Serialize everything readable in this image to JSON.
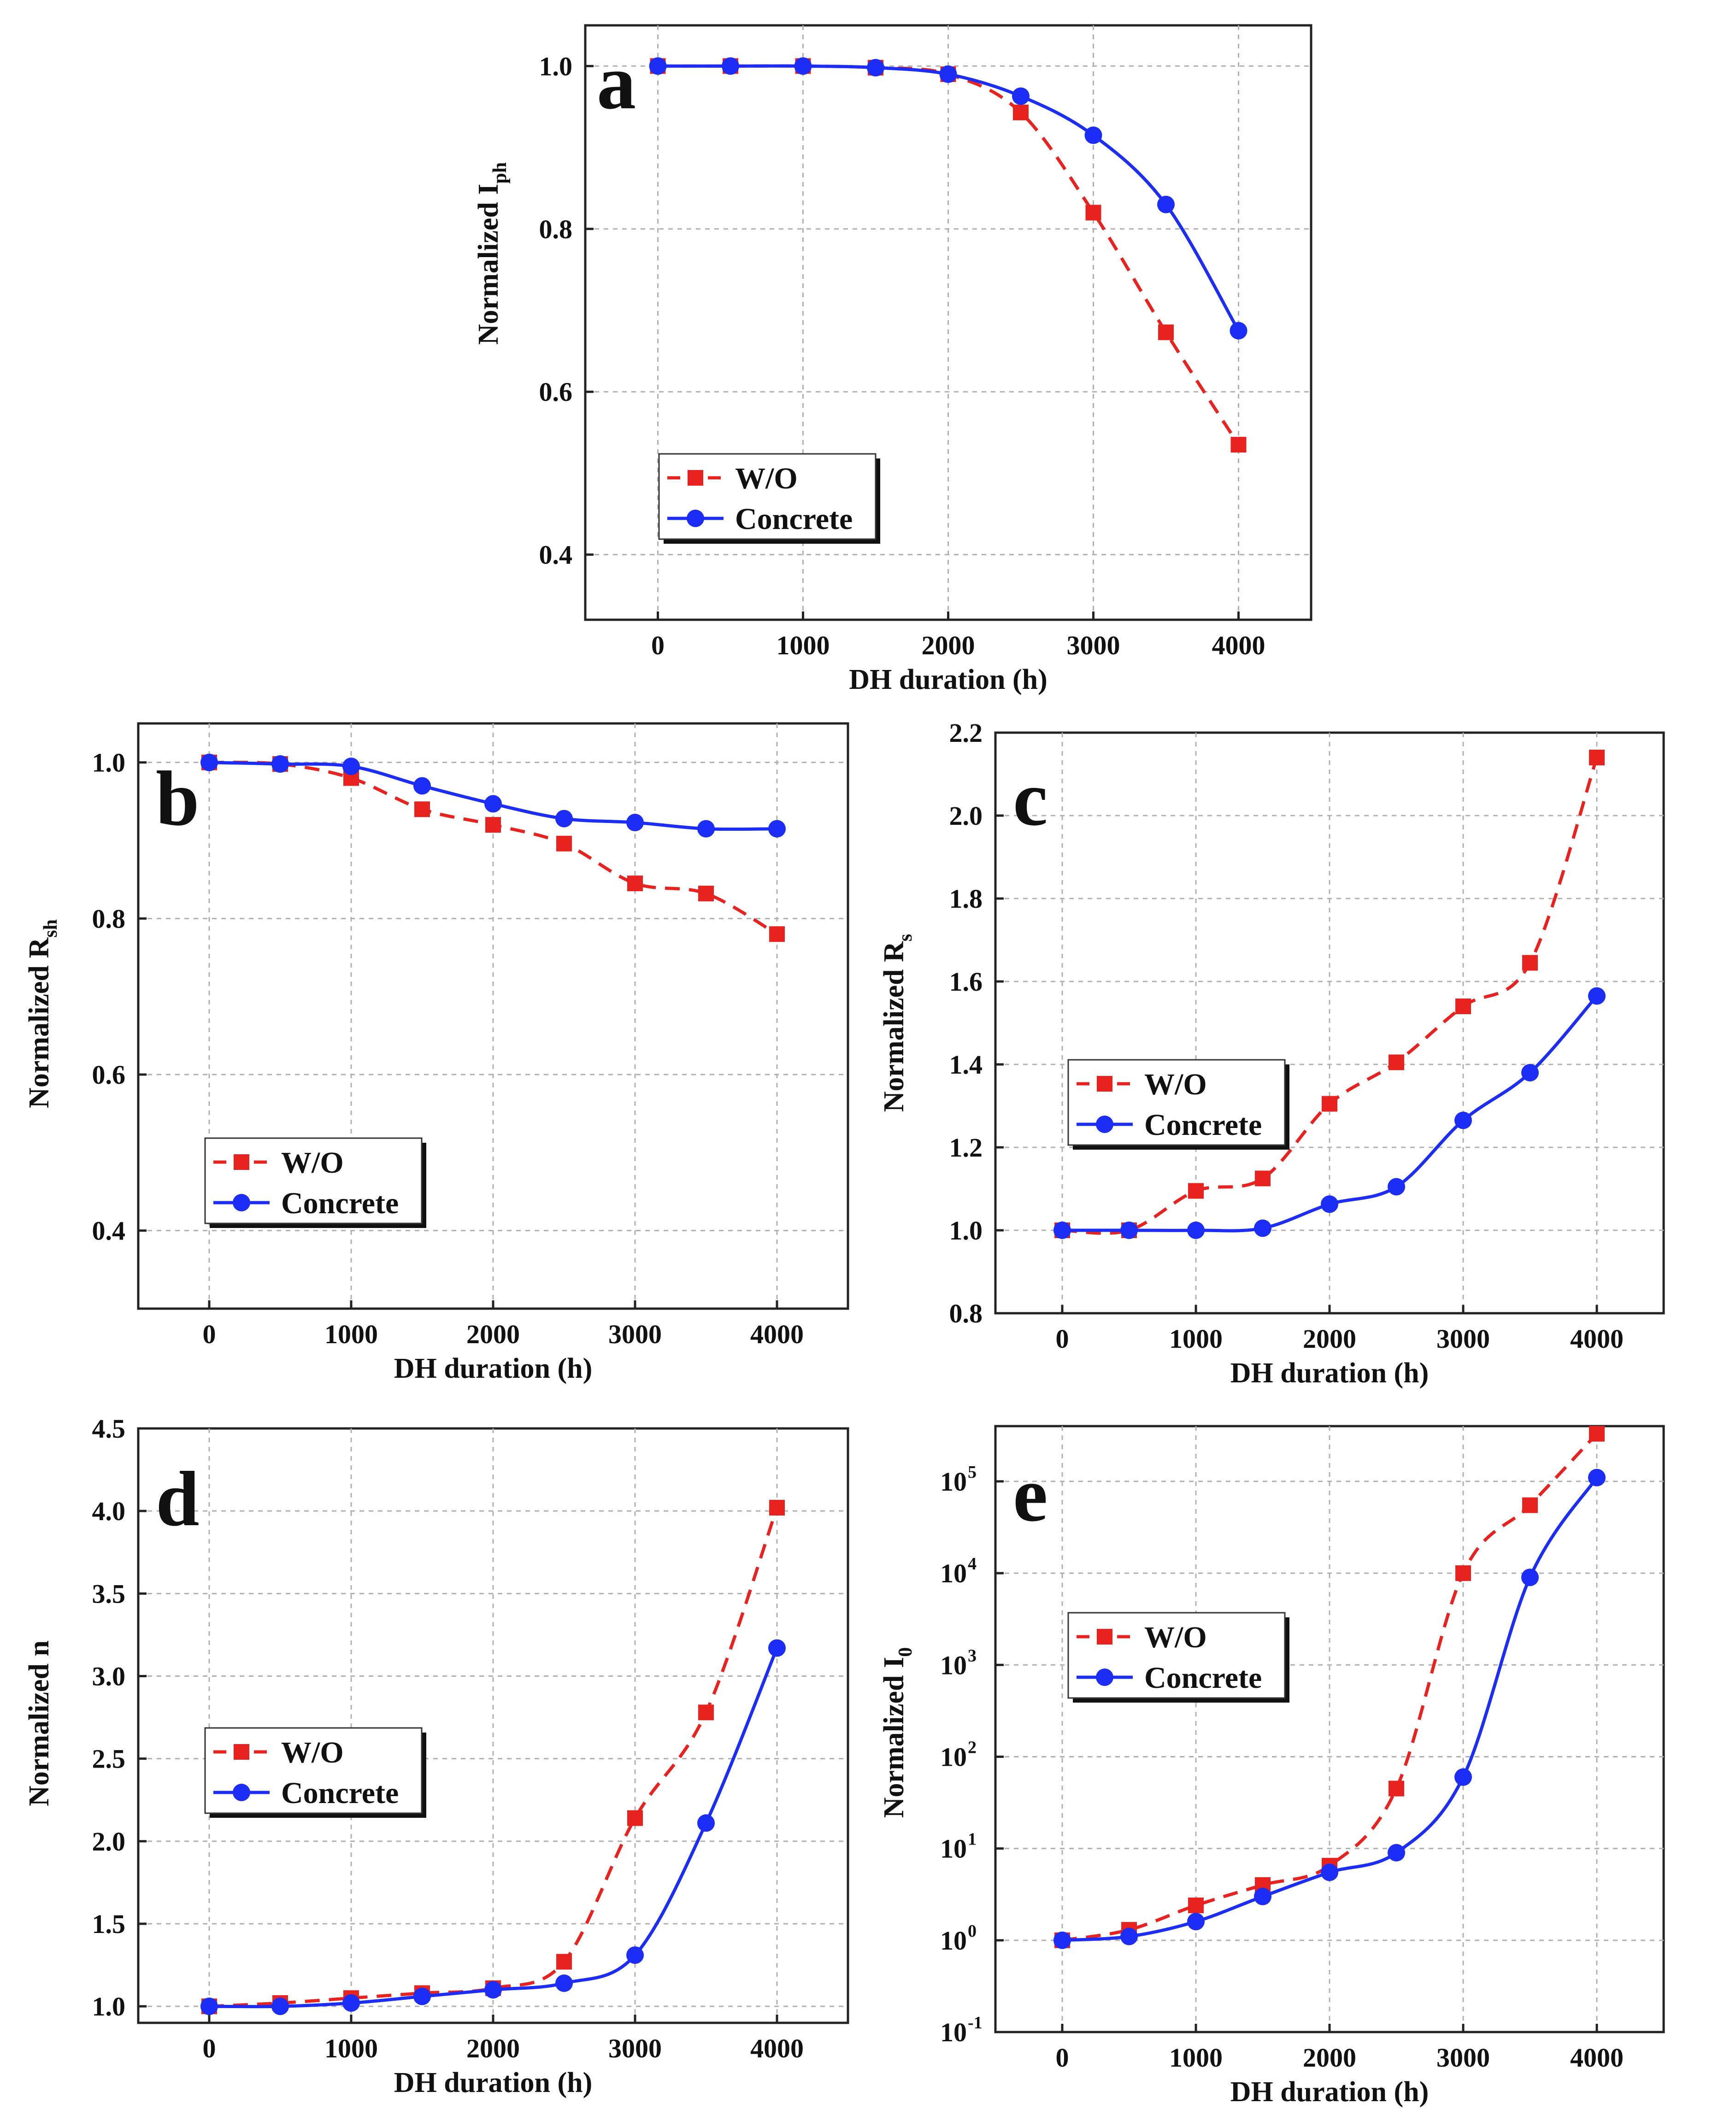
{
  "figure": {
    "legend_labels": [
      "W/O",
      "Concrete"
    ],
    "colors": {
      "wo": "#e8231f",
      "concrete": "#1c2df5",
      "grid": "#b0b0b0",
      "axis": "#222222"
    }
  },
  "chart_data": [
    {
      "id": "a",
      "panel_letter": "a",
      "type": "line",
      "title": "",
      "xlabel": "DH duration (h)",
      "ylabel_main": "Normalized  I",
      "ylabel_sub": "ph",
      "xlim": [
        -500,
        4500
      ],
      "ylim": [
        0.32,
        1.05
      ],
      "yscale": "linear",
      "x_ticks": [
        0,
        1000,
        2000,
        3000,
        4000
      ],
      "y_ticks": [
        0.4,
        0.6,
        0.8,
        1.0
      ],
      "y_tick_labels": [
        "0.4",
        "0.6",
        "0.8",
        "1.0"
      ],
      "legend_position": "middle-left",
      "series": [
        {
          "name": "W/O",
          "color": "#e8231f",
          "marker": "square",
          "linestyle": "dashed",
          "x": [
            0,
            500,
            1000,
            1500,
            2000,
            2500,
            3000,
            3500,
            4000
          ],
          "y": [
            1.0,
            1.0,
            1.0,
            0.998,
            0.99,
            0.943,
            0.82,
            0.673,
            0.535
          ]
        },
        {
          "name": "Concrete",
          "color": "#1c2df5",
          "marker": "circle",
          "linestyle": "solid",
          "x": [
            0,
            500,
            1000,
            1500,
            2000,
            2500,
            3000,
            3500,
            4000
          ],
          "y": [
            1.0,
            1.0,
            1.0,
            0.998,
            0.99,
            0.963,
            0.915,
            0.83,
            0.675
          ]
        }
      ]
    },
    {
      "id": "b",
      "panel_letter": "b",
      "type": "line",
      "title": "",
      "xlabel": "DH duration (h)",
      "ylabel_main": "Normalized  R",
      "ylabel_sub": "sh",
      "xlim": [
        -500,
        4500
      ],
      "ylim": [
        0.3,
        1.05
      ],
      "yscale": "linear",
      "x_ticks": [
        0,
        1000,
        2000,
        3000,
        4000
      ],
      "y_ticks": [
        0.4,
        0.6,
        0.8,
        1.0
      ],
      "y_tick_labels": [
        "0.4",
        "0.6",
        "0.8",
        "1.0"
      ],
      "legend_position": "bottom-left",
      "series": [
        {
          "name": "W/O",
          "color": "#e8231f",
          "marker": "square",
          "linestyle": "dashed",
          "x": [
            0,
            500,
            1000,
            1500,
            2000,
            2500,
            3000,
            3500,
            4000
          ],
          "y": [
            1.0,
            0.998,
            0.98,
            0.94,
            0.92,
            0.896,
            0.845,
            0.832,
            0.78
          ]
        },
        {
          "name": "Concrete",
          "color": "#1c2df5",
          "marker": "circle",
          "linestyle": "solid",
          "x": [
            0,
            500,
            1000,
            1500,
            2000,
            2500,
            3000,
            3500,
            4000
          ],
          "y": [
            1.0,
            0.998,
            0.995,
            0.97,
            0.947,
            0.928,
            0.923,
            0.915,
            0.915
          ]
        }
      ]
    },
    {
      "id": "c",
      "panel_letter": "c",
      "type": "line",
      "title": "",
      "xlabel": "DH duration (h)",
      "ylabel_main": "Normalized  R",
      "ylabel_sub": "s",
      "xlim": [
        -500,
        4500
      ],
      "ylim": [
        0.8,
        2.2
      ],
      "yscale": "linear",
      "x_ticks": [
        0,
        1000,
        2000,
        3000,
        4000
      ],
      "y_ticks": [
        0.8,
        1.0,
        1.2,
        1.4,
        1.6,
        1.8,
        2.0,
        2.2
      ],
      "y_tick_labels": [
        "0.8",
        "1.0",
        "1.2",
        "1.4",
        "1.6",
        "1.8",
        "2.0",
        "2.2"
      ],
      "legend_position": "middle-left",
      "series": [
        {
          "name": "W/O",
          "color": "#e8231f",
          "marker": "square",
          "linestyle": "dashed",
          "x": [
            0,
            500,
            1000,
            1500,
            2000,
            2500,
            3000,
            3500,
            4000
          ],
          "y": [
            1.0,
            1.0,
            1.095,
            1.125,
            1.305,
            1.405,
            1.54,
            1.645,
            2.14
          ]
        },
        {
          "name": "Concrete",
          "color": "#1c2df5",
          "marker": "circle",
          "linestyle": "solid",
          "x": [
            0,
            500,
            1000,
            1500,
            2000,
            2500,
            3000,
            3500,
            4000
          ],
          "y": [
            1.0,
            1.0,
            1.0,
            1.005,
            1.063,
            1.105,
            1.265,
            1.38,
            1.565
          ]
        }
      ]
    },
    {
      "id": "d",
      "panel_letter": "d",
      "type": "line",
      "title": "",
      "xlabel": "DH duration (h)",
      "ylabel_main": "Normalized  n",
      "ylabel_sub": "",
      "xlim": [
        -500,
        4500
      ],
      "ylim": [
        0.9,
        4.5
      ],
      "yscale": "linear",
      "x_ticks": [
        0,
        1000,
        2000,
        3000,
        4000
      ],
      "y_ticks": [
        1.0,
        1.5,
        2.0,
        2.5,
        3.0,
        3.5,
        4.0,
        4.5
      ],
      "y_tick_labels": [
        "1.0",
        "1.5",
        "2.0",
        "2.5",
        "3.0",
        "3.5",
        "4.0",
        "4.5"
      ],
      "legend_position": "middle-left",
      "series": [
        {
          "name": "W/O",
          "color": "#e8231f",
          "marker": "square",
          "linestyle": "dashed",
          "x": [
            0,
            500,
            1000,
            1500,
            2000,
            2500,
            3000,
            3500,
            4000
          ],
          "y": [
            1.0,
            1.02,
            1.05,
            1.08,
            1.11,
            1.27,
            2.14,
            2.78,
            4.02
          ]
        },
        {
          "name": "Concrete",
          "color": "#1c2df5",
          "marker": "circle",
          "linestyle": "solid",
          "x": [
            0,
            500,
            1000,
            1500,
            2000,
            2500,
            3000,
            3500,
            4000
          ],
          "y": [
            1.0,
            1.0,
            1.02,
            1.06,
            1.1,
            1.14,
            1.31,
            2.11,
            3.17
          ]
        }
      ]
    },
    {
      "id": "e",
      "panel_letter": "e",
      "type": "line",
      "title": "",
      "xlabel": "DH duration (h)",
      "ylabel_main": "Normalized  I",
      "ylabel_sub": "0",
      "xlim": [
        -500,
        4500
      ],
      "ylim": [
        0.1,
        400000
      ],
      "yscale": "log",
      "x_ticks": [
        0,
        1000,
        2000,
        3000,
        4000
      ],
      "y_ticks": [
        0.1,
        1,
        10,
        100,
        1000,
        10000,
        100000
      ],
      "y_tick_labels": [
        "10",
        "10",
        "10",
        "10",
        "10",
        "10",
        "10"
      ],
      "y_tick_exponents": [
        "-1",
        "0",
        "1",
        "2",
        "3",
        "4",
        "5"
      ],
      "legend_position": "middle-left",
      "series": [
        {
          "name": "W/O",
          "color": "#e8231f",
          "marker": "square",
          "linestyle": "dashed",
          "x": [
            0,
            500,
            1000,
            1500,
            2000,
            2500,
            3000,
            3500,
            4000
          ],
          "y": [
            1.0,
            1.3,
            2.4,
            4.0,
            6.5,
            45,
            10000,
            55000,
            330000
          ]
        },
        {
          "name": "Concrete",
          "color": "#1c2df5",
          "marker": "circle",
          "linestyle": "solid",
          "x": [
            0,
            500,
            1000,
            1500,
            2000,
            2500,
            3000,
            3500,
            4000
          ],
          "y": [
            1.0,
            1.1,
            1.6,
            3.0,
            5.5,
            9.0,
            60,
            9000,
            110000
          ]
        }
      ]
    }
  ]
}
